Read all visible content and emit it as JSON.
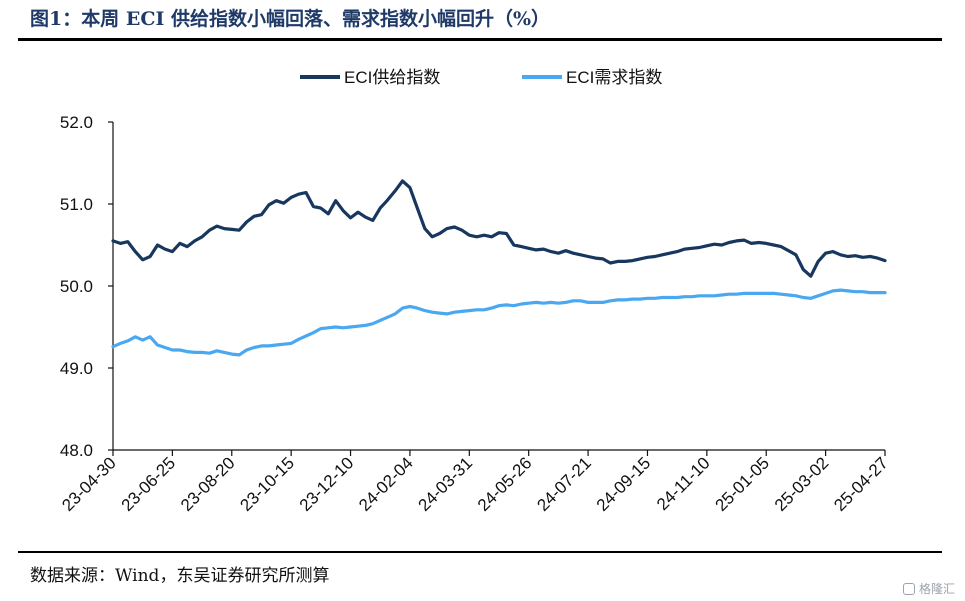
{
  "header": {
    "title": "图1：本周 ECI 供给指数小幅回落、需求指数小幅回升（%）"
  },
  "footer": {
    "source": "数据来源：Wind，东吴证券研究所测算"
  },
  "watermark": {
    "text": "格隆汇"
  },
  "colors": {
    "supply": "#17375e",
    "demand": "#4aa8f0",
    "axis": "#111111"
  },
  "chart_data": {
    "type": "line",
    "title": "",
    "xlabel": "",
    "ylabel": "",
    "ylim": [
      48.0,
      52.0
    ],
    "yticks": [
      "48.0",
      "49.0",
      "50.0",
      "51.0",
      "52.0"
    ],
    "grid": false,
    "legend_position": "top",
    "xticks": [
      "23-04-30",
      "23-06-25",
      "23-08-20",
      "23-10-15",
      "23-12-10",
      "24-02-04",
      "24-03-31",
      "24-05-26",
      "24-07-21",
      "24-09-15",
      "24-11-10",
      "25-01-05",
      "25-03-02",
      "25-04-27"
    ],
    "x": [
      "23-04-30",
      "23-05-07",
      "23-05-14",
      "23-05-21",
      "23-05-28",
      "23-06-04",
      "23-06-11",
      "23-06-18",
      "23-06-25",
      "23-07-02",
      "23-07-09",
      "23-07-16",
      "23-07-23",
      "23-07-30",
      "23-08-06",
      "23-08-13",
      "23-08-20",
      "23-08-27",
      "23-09-03",
      "23-09-10",
      "23-09-17",
      "23-09-24",
      "23-10-01",
      "23-10-08",
      "23-10-15",
      "23-10-22",
      "23-10-29",
      "23-11-05",
      "23-11-12",
      "23-11-19",
      "23-11-26",
      "23-12-03",
      "23-12-10",
      "23-12-17",
      "23-12-24",
      "23-12-31",
      "24-01-07",
      "24-01-14",
      "24-01-21",
      "24-01-28",
      "24-02-04",
      "24-02-11",
      "24-02-18",
      "24-02-25",
      "24-03-03",
      "24-03-10",
      "24-03-17",
      "24-03-24",
      "24-03-31",
      "24-04-07",
      "24-04-14",
      "24-04-21",
      "24-04-28",
      "24-05-05",
      "24-05-12",
      "24-05-19",
      "24-05-26",
      "24-06-02",
      "24-06-09",
      "24-06-16",
      "24-06-23",
      "24-06-30",
      "24-07-07",
      "24-07-14",
      "24-07-21",
      "24-07-28",
      "24-08-04",
      "24-08-11",
      "24-08-18",
      "24-08-25",
      "24-09-01",
      "24-09-08",
      "24-09-15",
      "24-09-22",
      "24-09-29",
      "24-10-06",
      "24-10-13",
      "24-10-20",
      "24-10-27",
      "24-11-03",
      "24-11-10",
      "24-11-17",
      "24-11-24",
      "24-12-01",
      "24-12-08",
      "24-12-15",
      "24-12-22",
      "24-12-29",
      "25-01-05",
      "25-01-12",
      "25-01-19",
      "25-01-26",
      "25-02-02",
      "25-02-09",
      "25-02-16",
      "25-02-23",
      "25-03-02",
      "25-03-09",
      "25-03-16",
      "25-03-23",
      "25-03-30",
      "25-04-06",
      "25-04-13",
      "25-04-20",
      "25-04-27"
    ],
    "series": [
      {
        "name": "ECI供给指数",
        "color": "#17375e",
        "values": [
          50.55,
          50.52,
          50.54,
          50.42,
          50.32,
          50.36,
          50.5,
          50.45,
          50.42,
          50.52,
          50.48,
          50.55,
          50.6,
          50.68,
          50.73,
          50.7,
          50.69,
          50.68,
          50.78,
          50.85,
          50.87,
          50.99,
          51.04,
          51.01,
          51.08,
          51.12,
          51.14,
          50.97,
          50.95,
          50.88,
          51.04,
          50.92,
          50.83,
          50.9,
          50.84,
          50.8,
          50.95,
          51.05,
          51.16,
          51.28,
          51.2,
          50.95,
          50.7,
          50.6,
          50.64,
          50.7,
          50.72,
          50.68,
          50.62,
          50.6,
          50.62,
          50.6,
          50.65,
          50.64,
          50.5,
          50.48,
          50.46,
          50.44,
          50.45,
          50.42,
          50.4,
          50.43,
          50.4,
          50.38,
          50.36,
          50.34,
          50.33,
          50.28,
          50.3,
          50.3,
          50.31,
          50.33,
          50.35,
          50.36,
          50.38,
          50.4,
          50.42,
          50.45,
          50.46,
          50.47,
          50.49,
          50.51,
          50.5,
          50.53,
          50.55,
          50.56,
          50.52,
          50.53,
          50.52,
          50.5,
          50.48,
          50.43,
          50.38,
          50.2,
          50.12,
          50.3,
          50.4,
          50.42,
          50.38,
          50.36,
          50.37,
          50.35,
          50.36,
          50.34,
          50.31
        ]
      },
      {
        "name": "ECI需求指数",
        "color": "#4aa8f0",
        "values": [
          49.26,
          49.3,
          49.33,
          49.38,
          49.34,
          49.38,
          49.28,
          49.25,
          49.22,
          49.22,
          49.2,
          49.19,
          49.19,
          49.18,
          49.21,
          49.19,
          49.17,
          49.16,
          49.22,
          49.25,
          49.27,
          49.27,
          49.28,
          49.29,
          49.3,
          49.35,
          49.39,
          49.43,
          49.48,
          49.49,
          49.5,
          49.49,
          49.5,
          49.51,
          49.52,
          49.54,
          49.58,
          49.62,
          49.66,
          49.73,
          49.75,
          49.73,
          49.7,
          49.68,
          49.67,
          49.66,
          49.68,
          49.69,
          49.7,
          49.71,
          49.71,
          49.73,
          49.76,
          49.77,
          49.76,
          49.78,
          49.79,
          49.8,
          49.79,
          49.8,
          49.79,
          49.8,
          49.82,
          49.82,
          49.8,
          49.8,
          49.8,
          49.82,
          49.83,
          49.83,
          49.84,
          49.84,
          49.85,
          49.85,
          49.86,
          49.86,
          49.86,
          49.87,
          49.87,
          49.88,
          49.88,
          49.88,
          49.89,
          49.9,
          49.9,
          49.91,
          49.91,
          49.91,
          49.91,
          49.91,
          49.9,
          49.89,
          49.88,
          49.86,
          49.85,
          49.88,
          49.91,
          49.94,
          49.95,
          49.94,
          49.93,
          49.93,
          49.92,
          49.92,
          49.92
        ]
      }
    ]
  }
}
